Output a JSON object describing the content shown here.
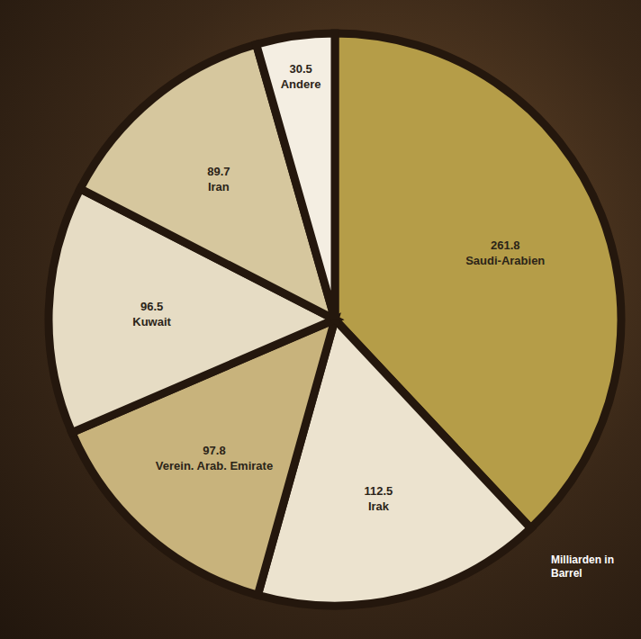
{
  "chart_data": {
    "type": "pie",
    "categories": [
      "Saudi-Arabien",
      "Irak",
      "Verein. Arab. Emirate",
      "Kuwait",
      "Iran",
      "Andere"
    ],
    "values": [
      261.8,
      112.5,
      97.8,
      96.5,
      89.7,
      30.5
    ],
    "colors": [
      "#b59d48",
      "#ece3cf",
      "#c8b37c",
      "#e6dcc4",
      "#d6c79e",
      "#f4eee2"
    ],
    "data_labels": true,
    "annotation": "Milliarden in Barrel"
  }
}
